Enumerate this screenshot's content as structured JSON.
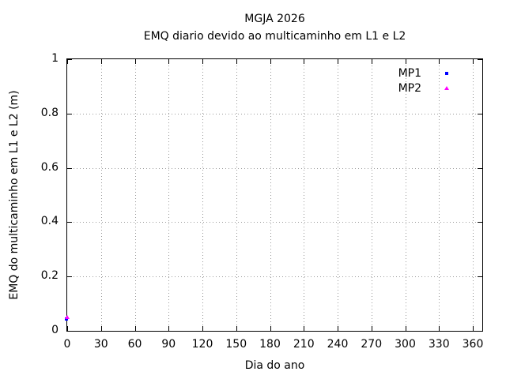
{
  "chart_data": {
    "type": "scatter",
    "title": "MGJA 2026",
    "subtitle": "EMQ diario devido ao multicaminho em L1 e L2",
    "xlabel": "Dia do ano",
    "ylabel": "EMQ do multicaminho em L1 e L2 (m)",
    "xlim": [
      0,
      370
    ],
    "ylim": [
      0,
      1
    ],
    "xticks": [
      0,
      30,
      60,
      90,
      120,
      150,
      180,
      210,
      240,
      270,
      300,
      330,
      360
    ],
    "yticks": [
      "0",
      "0.2",
      "0.4",
      "0.6",
      "0.8",
      "1"
    ],
    "grid": true,
    "legend_position": "inside-top-right",
    "series": [
      {
        "name": "MP1",
        "color": "#0000ff",
        "marker": "square",
        "points": [
          {
            "x": 0,
            "y": 0.04
          }
        ]
      },
      {
        "name": "MP2",
        "color": "#ff00ff",
        "marker": "triangle",
        "points": [
          {
            "x": 0,
            "y": 0.05
          }
        ]
      }
    ]
  },
  "colors": {
    "background": "#ffffff",
    "frame": "#000000",
    "grid": "#9a9a9a",
    "text": "#000000"
  }
}
